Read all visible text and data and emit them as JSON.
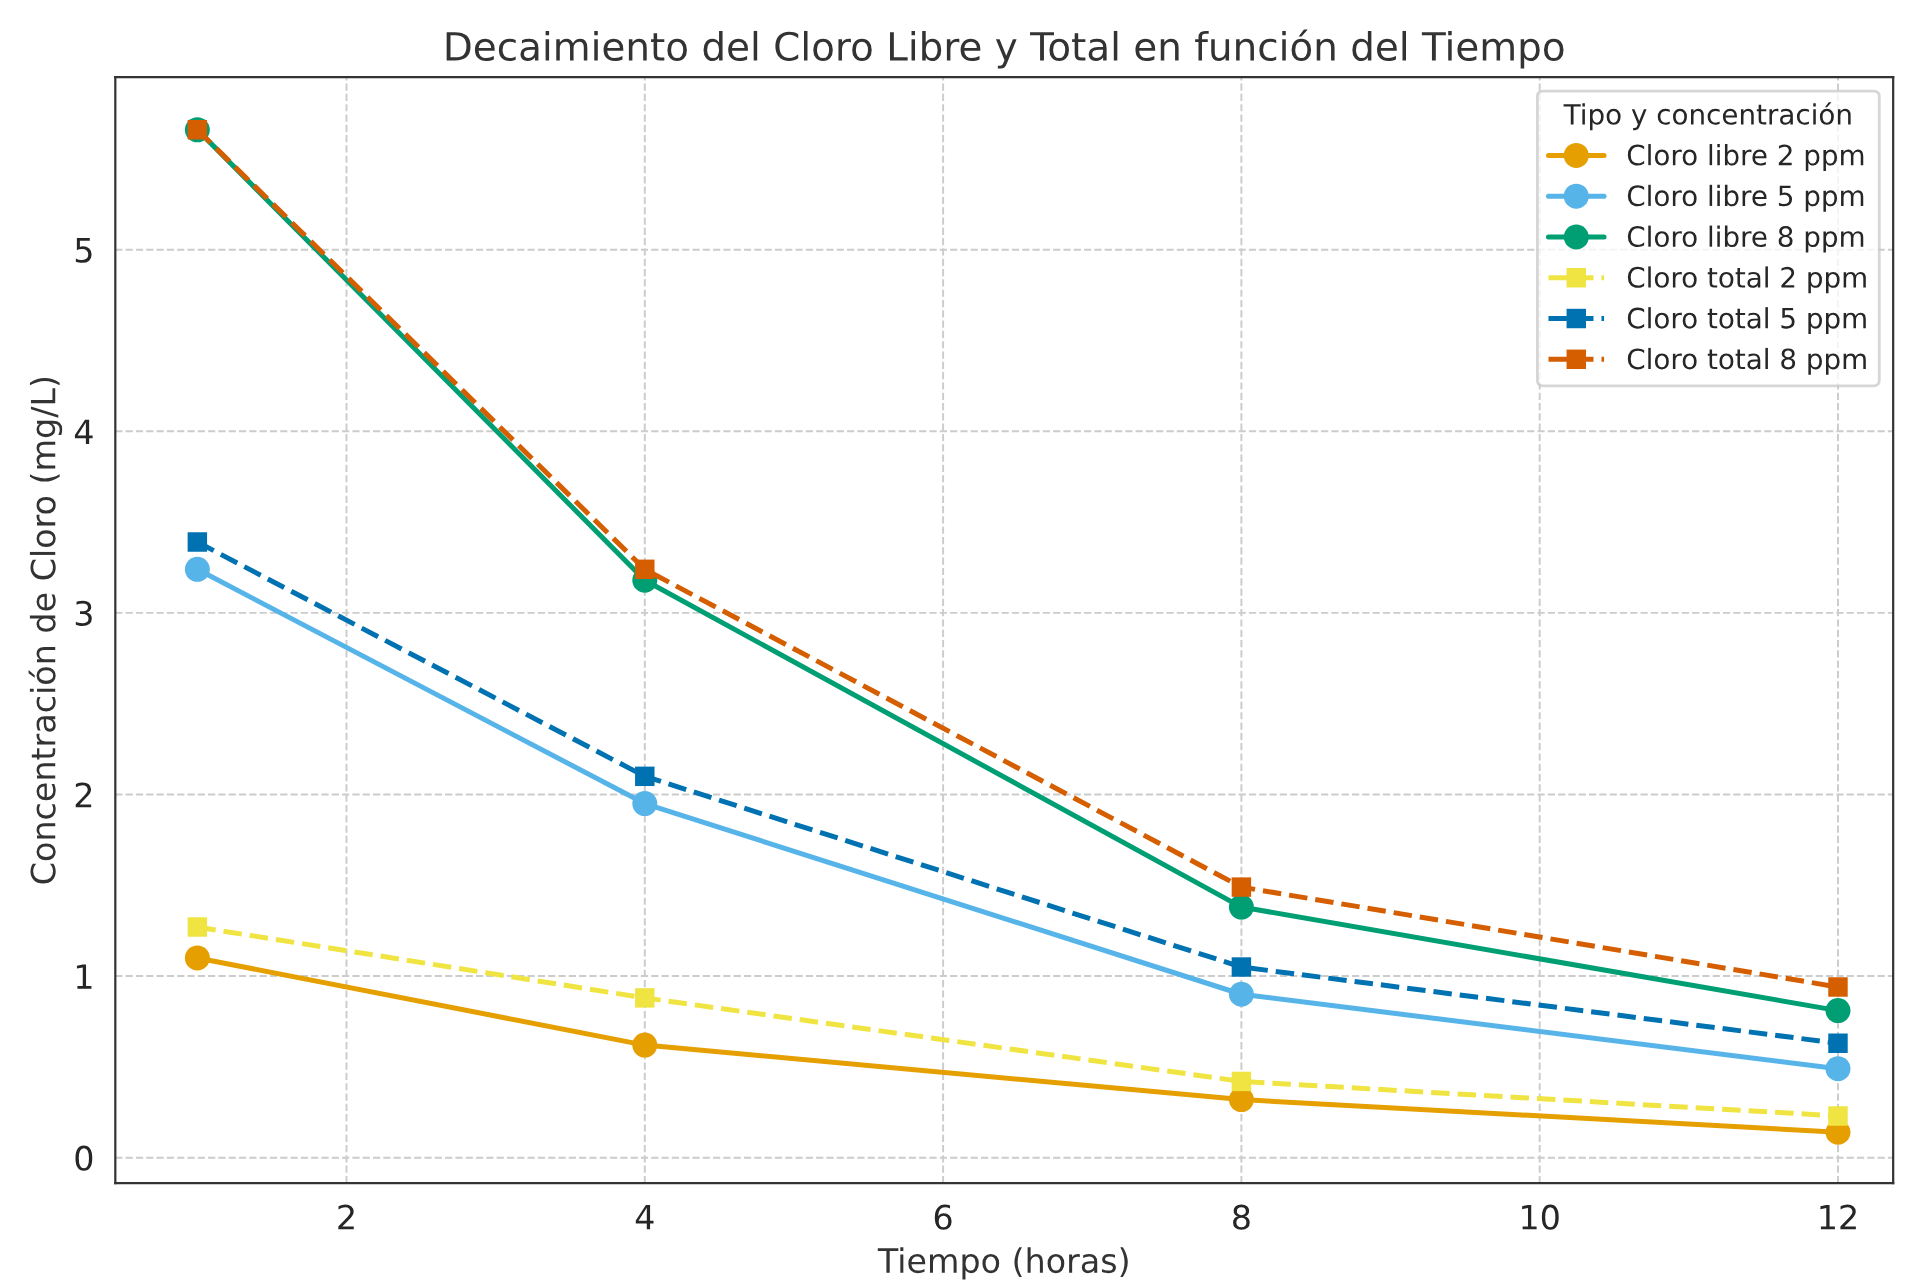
{
  "chart_data": {
    "type": "line",
    "title": "Decaimiento del Cloro Libre y Total en función del Tiempo",
    "xlabel": "Tiempo (horas)",
    "ylabel": "Concentración de Cloro (mg/L)",
    "legend_title": "Tipo y concentración",
    "x": [
      1,
      4,
      8,
      12
    ],
    "series": [
      {
        "name": "Cloro libre 2 ppm",
        "color": "#e69f00",
        "values": [
          1.1,
          0.62,
          0.32,
          0.14
        ],
        "marker": "circle",
        "line_style": "solid"
      },
      {
        "name": "Cloro libre 5 ppm",
        "color": "#56b4e9",
        "values": [
          3.24,
          1.95,
          0.9,
          0.49
        ],
        "marker": "circle",
        "line_style": "solid"
      },
      {
        "name": "Cloro libre 8 ppm",
        "color": "#009e73",
        "values": [
          5.66,
          3.18,
          1.38,
          0.81
        ],
        "marker": "circle",
        "line_style": "solid"
      },
      {
        "name": "Cloro total 2 ppm",
        "color": "#f0e442",
        "values": [
          1.27,
          0.88,
          0.42,
          0.23
        ],
        "marker": "square",
        "line_style": "dashed"
      },
      {
        "name": "Cloro total 5 ppm",
        "color": "#0072b2",
        "values": [
          3.39,
          2.1,
          1.05,
          0.63
        ],
        "marker": "square",
        "line_style": "dashed"
      },
      {
        "name": "Cloro total 8 ppm",
        "color": "#d55e00",
        "values": [
          5.66,
          3.24,
          1.49,
          0.94
        ],
        "marker": "square",
        "line_style": "dashed"
      }
    ],
    "xlim": [
      0.45,
      12.37
    ],
    "ylim": [
      -0.14,
      5.95
    ],
    "xticks": [
      2,
      4,
      6,
      8,
      10,
      12
    ],
    "yticks": [
      0,
      1,
      2,
      3,
      4,
      5
    ],
    "grid": true,
    "legend": "top right"
  }
}
